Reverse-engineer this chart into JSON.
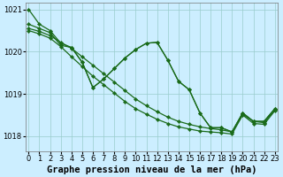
{
  "background_color": "#cceeff",
  "grid_color": "#99cccc",
  "line_color": "#1a6b1a",
  "xlabel": "Graphe pression niveau de la mer (hPa)",
  "xlabel_fontsize": 7.5,
  "tick_fontsize": 6,
  "xlim": [
    -0.3,
    23.3
  ],
  "ylim": [
    1017.65,
    1021.15
  ],
  "yticks": [
    1018,
    1019,
    1020,
    1021
  ],
  "xticks": [
    0,
    1,
    2,
    3,
    4,
    5,
    6,
    7,
    8,
    9,
    10,
    11,
    12,
    13,
    14,
    15,
    16,
    17,
    18,
    19,
    20,
    21,
    22,
    23
  ],
  "s1": [
    1021.0,
    1020.65,
    1020.5,
    1020.2,
    1020.1,
    1019.75,
    1019.15,
    1019.35,
    1019.6,
    1019.85,
    1020.05,
    1020.2,
    1020.22,
    1019.8,
    1019.3,
    1019.1,
    1018.55,
    1018.2,
    1018.2,
    1018.1,
    1018.55,
    1018.35,
    1018.35,
    1018.65
  ],
  "s2": [
    1020.65,
    1020.55,
    1020.45,
    1020.15,
    1020.1,
    1019.75,
    1019.15,
    1019.35,
    1019.6,
    1019.85,
    1020.05,
    1020.2,
    1020.22,
    1019.8,
    1019.3,
    1019.1,
    1018.55,
    1018.2,
    1018.2,
    1018.1,
    1018.55,
    1018.35,
    1018.35,
    1018.65
  ],
  "s3": [
    1020.55,
    1020.48,
    1020.38,
    1020.22,
    1020.08,
    1019.88,
    1019.68,
    1019.48,
    1019.28,
    1019.08,
    1018.88,
    1018.72,
    1018.58,
    1018.45,
    1018.35,
    1018.28,
    1018.22,
    1018.18,
    1018.15,
    1018.1,
    1018.52,
    1018.35,
    1018.32,
    1018.62
  ],
  "s4": [
    1020.5,
    1020.42,
    1020.32,
    1020.12,
    1019.88,
    1019.65,
    1019.42,
    1019.22,
    1019.02,
    1018.82,
    1018.65,
    1018.52,
    1018.4,
    1018.3,
    1018.22,
    1018.17,
    1018.12,
    1018.1,
    1018.08,
    1018.05,
    1018.5,
    1018.3,
    1018.28,
    1018.6
  ]
}
